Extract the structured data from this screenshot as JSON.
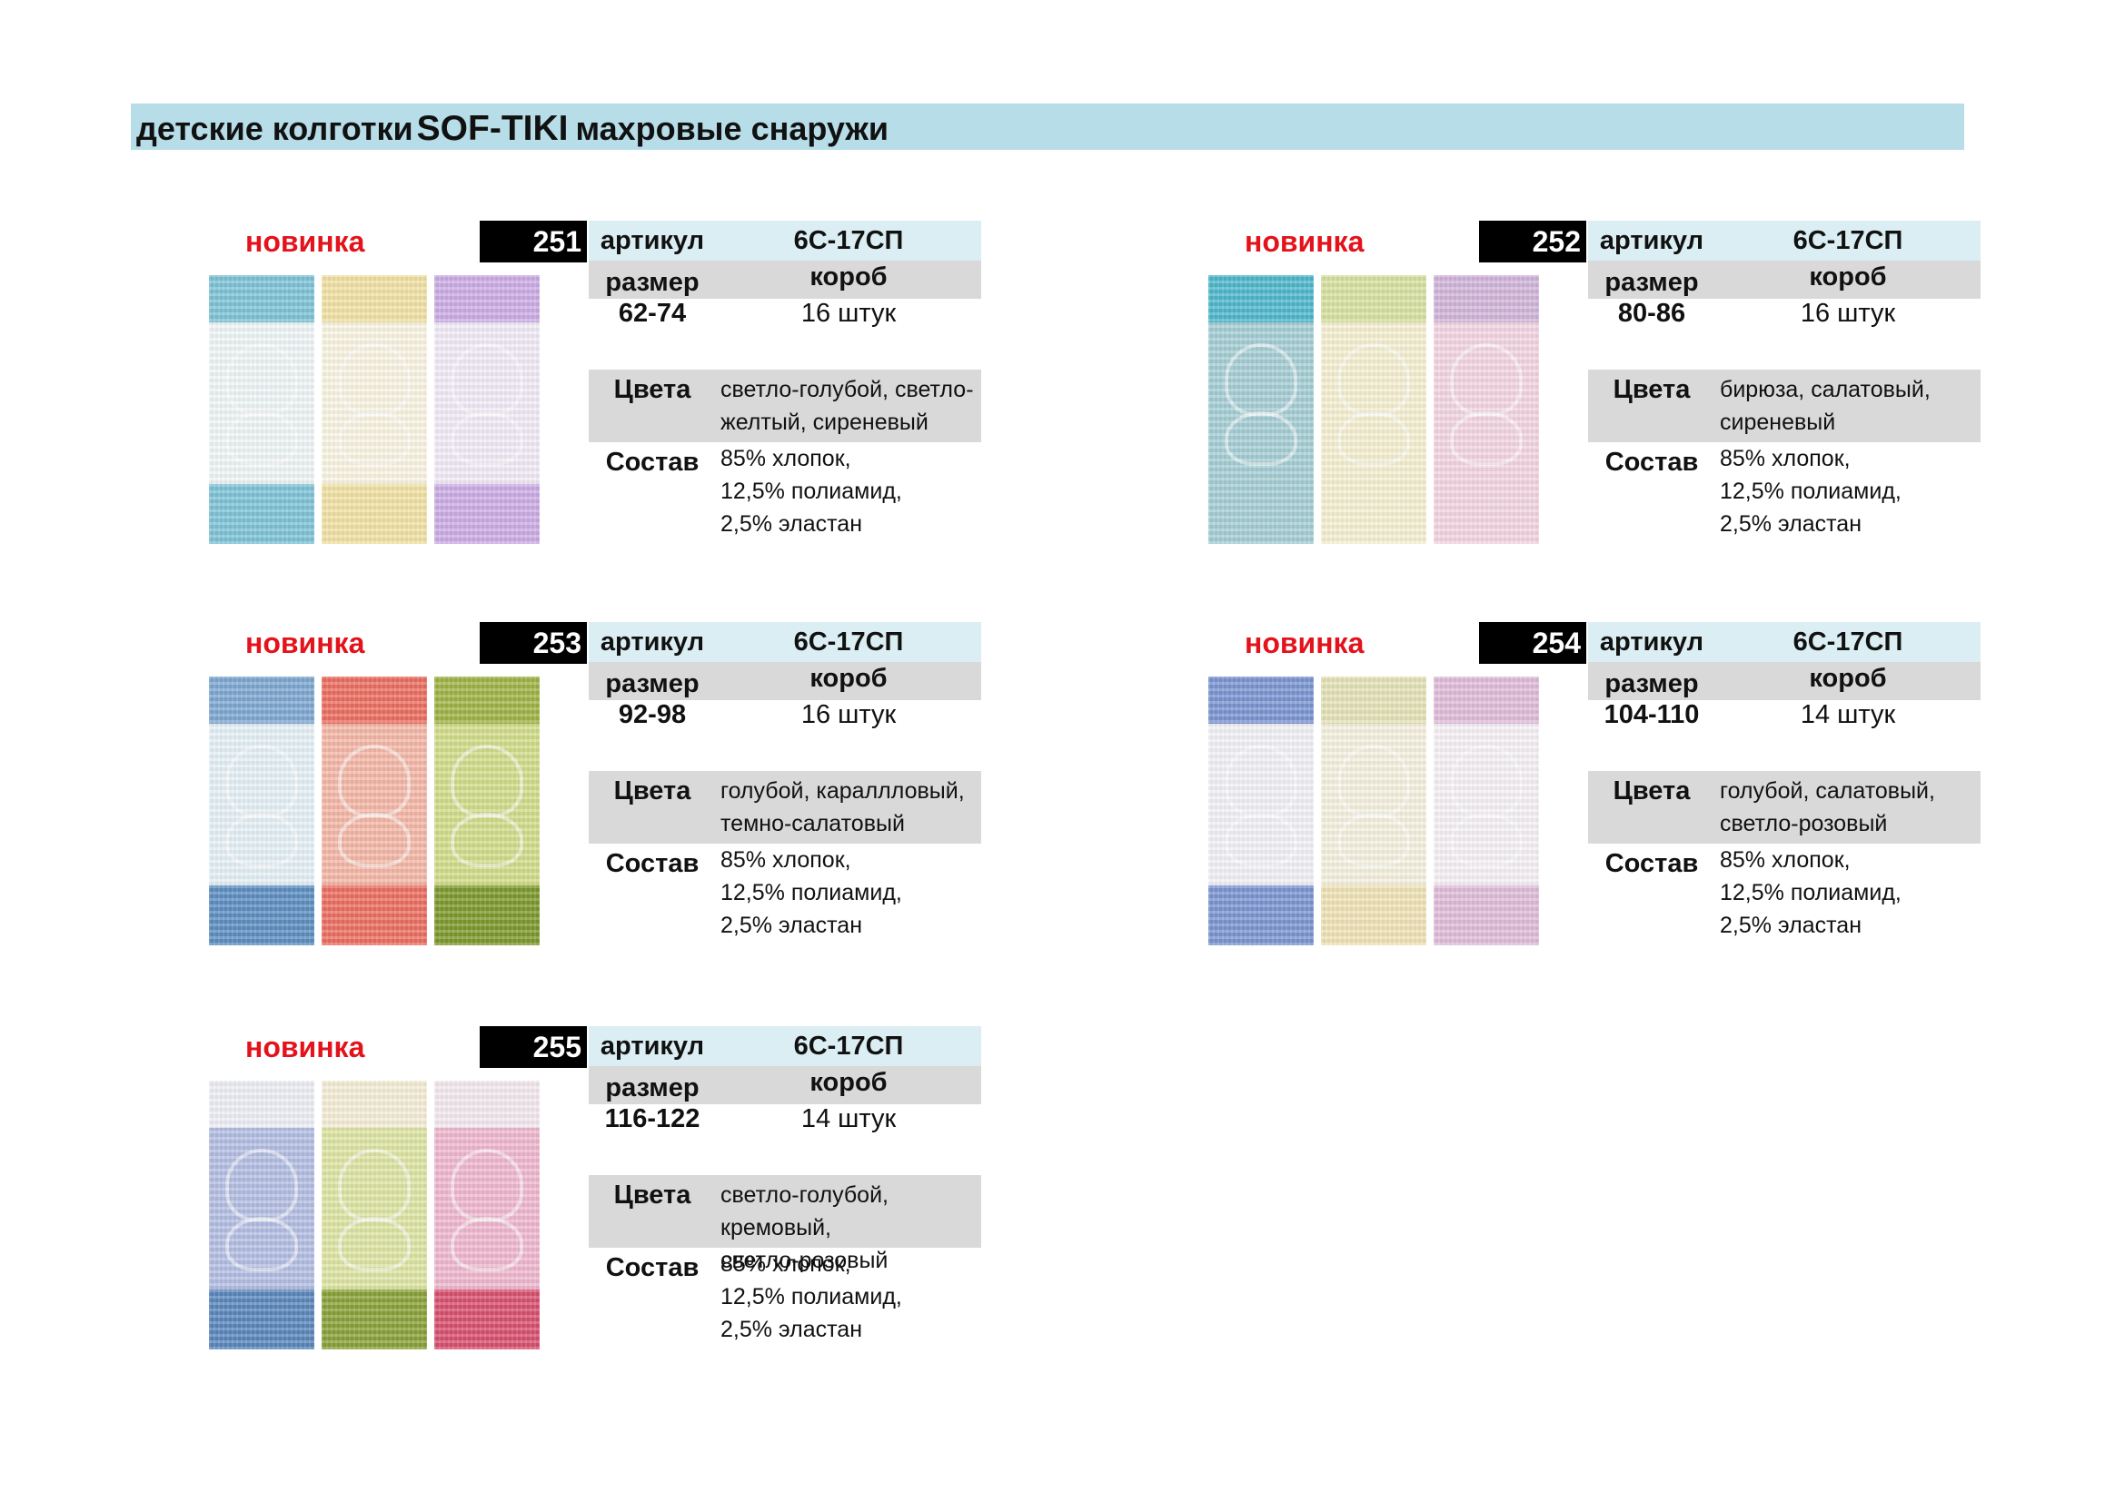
{
  "header": {
    "title_prefix": "детские колготки",
    "brand": "SOF-TIKI",
    "title_suffix": "махровые снаружи"
  },
  "labels": {
    "new": "новинка",
    "article": "артикул",
    "size": "размер",
    "box": "короб",
    "colors": "Цвета",
    "composition": "Состав"
  },
  "products": [
    {
      "number": "251",
      "article": "6С-17СП",
      "size": "62-74",
      "box_qty": "16 штук",
      "colors": "светло-голубой, светло-\nжелтый, сиреневый",
      "composition": "85% хлопок,\n12,5% полиамид,\n2,5% эластан",
      "swatches": [
        {
          "color": "light-blue",
          "main": "#f1f7f8",
          "top": "#7fc4d8",
          "bottom": "#7fc4d8"
        },
        {
          "color": "light-yellow",
          "main": "#fbf6e4",
          "top": "#f3e3a6",
          "bottom": "#f3e3a6"
        },
        {
          "color": "lilac",
          "main": "#f3ecf8",
          "top": "#cdaee6",
          "bottom": "#cdaee6"
        }
      ]
    },
    {
      "number": "252",
      "article": "6С-17СП",
      "size": "80-86",
      "box_qty": "16 штук",
      "colors": "бирюза, салатовый,\nсиреневый",
      "composition": "85% хлопок,\n12,5% полиамид,\n2,5% эластан",
      "swatches": [
        {
          "color": "turquoise",
          "main": "#a6cfd6",
          "top": "#4fb9cc",
          "bottom": "#a6cfd6"
        },
        {
          "color": "light-green",
          "main": "#f7f1d3",
          "top": "#d8e3a2",
          "bottom": "#f7f1d3"
        },
        {
          "color": "lilac",
          "main": "#f5d7e4",
          "top": "#d3b7dc",
          "bottom": "#f5d7e4"
        }
      ]
    },
    {
      "number": "253",
      "article": "6С-17СП",
      "size": "92-98",
      "box_qty": "16 штук",
      "colors": "голубой, караллловый,\nтемно-салатовый",
      "composition": "85% хлопок,\n12,5% полиамид,\n2,5% эластан",
      "swatches": [
        {
          "color": "blue",
          "main": "#e6f2f8",
          "top": "#7fa8d2",
          "bottom": "#5e8fc2"
        },
        {
          "color": "coral",
          "main": "#f6b9a8",
          "top": "#ec6f62",
          "bottom": "#ec6f62"
        },
        {
          "color": "dark-green",
          "main": "#d3de8a",
          "top": "#a0b447",
          "bottom": "#7e9a2d"
        }
      ]
    },
    {
      "number": "254",
      "article": "6С-17СП",
      "size": "104-110",
      "box_qty": "14 штук",
      "colors": "голубой, салатовый,\nсветло-розовый",
      "composition": "85% хлопок,\n12,5% полиамид,\n2,5% эластан",
      "swatches": [
        {
          "color": "blue",
          "main": "#f3f3f8",
          "top": "#7d96d3",
          "bottom": "#7d96d3"
        },
        {
          "color": "light-green",
          "main": "#f7f3e1",
          "top": "#e5e4b9",
          "bottom": "#f1e4b8"
        },
        {
          "color": "light-pink",
          "main": "#f7f3f7",
          "top": "#e2bedb",
          "bottom": "#e2bedb"
        }
      ]
    },
    {
      "number": "255",
      "article": "6С-17СП",
      "size": "116-122",
      "box_qty": "14 штук",
      "colors": "светло-голубой,\nкремовый,\nсветло-розовый",
      "composition": "85% хлопок,\n12,5% полиамид,\n2,5% эластан",
      "swatches": [
        {
          "color": "light-blue",
          "main": "#b5bfe4",
          "top": "#eef0f6",
          "bottom": "#5b88bd"
        },
        {
          "color": "cream",
          "main": "#dfe6a4",
          "top": "#f6eed8",
          "bottom": "#8aa33a"
        },
        {
          "color": "light-pink",
          "main": "#f1b9cf",
          "top": "#f5eaf0",
          "bottom": "#d9516f"
        }
      ]
    }
  ]
}
